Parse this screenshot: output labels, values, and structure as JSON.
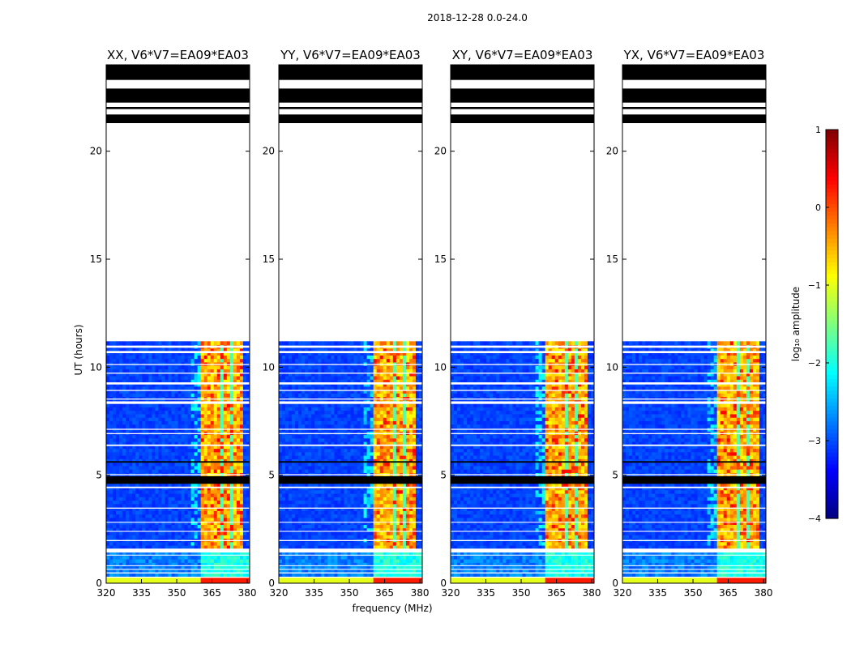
{
  "figure_title": "2018-12-28 0.0-24.0",
  "chart_data": [
    {
      "type": "heatmap",
      "title": "XX, V6*V7=EA09*EA03",
      "xlabel": "",
      "ylabel": "UT (hours)",
      "xlim": [
        320,
        381
      ],
      "ylim": [
        0,
        24
      ],
      "xticks": [
        320,
        335,
        350,
        365,
        380
      ],
      "yticks": [
        0,
        5,
        10,
        15,
        20
      ],
      "data_extent_hours": [
        0,
        11.2
      ],
      "bright_band_mhz": [
        360.5,
        378.5
      ]
    },
    {
      "type": "heatmap",
      "title": "YY, V6*V7=EA09*EA03",
      "xlabel": "frequency (MHz)",
      "ylabel": "",
      "xlim": [
        320,
        381
      ],
      "ylim": [
        0,
        24
      ],
      "xticks": [
        320,
        335,
        350,
        365,
        380
      ],
      "yticks": [
        0,
        5,
        10,
        15,
        20
      ],
      "data_extent_hours": [
        0,
        11.2
      ],
      "bright_band_mhz": [
        360.5,
        378.5
      ]
    },
    {
      "type": "heatmap",
      "title": "XY, V6*V7=EA09*EA03",
      "xlabel": "",
      "ylabel": "",
      "xlim": [
        320,
        381
      ],
      "ylim": [
        0,
        24
      ],
      "xticks": [
        320,
        335,
        350,
        365,
        380
      ],
      "yticks": [
        0,
        5,
        10,
        15,
        20
      ],
      "data_extent_hours": [
        0,
        11.2
      ],
      "bright_band_mhz": [
        360.5,
        378.5
      ]
    },
    {
      "type": "heatmap",
      "title": "YX, V6*V7=EA09*EA03",
      "xlabel": "",
      "ylabel": "",
      "xlim": [
        320,
        381
      ],
      "ylim": [
        0,
        24
      ],
      "xticks": [
        320,
        335,
        350,
        365,
        380
      ],
      "yticks": [
        0,
        5,
        10,
        15,
        20
      ],
      "data_extent_hours": [
        0,
        11.2
      ],
      "bright_band_mhz": [
        360.5,
        378.5
      ]
    }
  ],
  "colorbar": {
    "label": "log₁₀ amplitude",
    "range": [
      -4,
      1
    ],
    "ticks": [
      1,
      0,
      -1,
      -2,
      -3,
      -4
    ],
    "tick_labels": [
      "1",
      "0",
      "−1",
      "−2",
      "−3",
      "−4"
    ],
    "colormap": "jet"
  },
  "flagged_black_hours": [
    [
      4.6,
      4.95
    ],
    [
      5.58,
      5.65
    ],
    [
      21.3,
      21.7
    ],
    [
      21.95,
      22.05
    ],
    [
      22.25,
      22.9
    ],
    [
      23.3,
      24.0
    ]
  ],
  "colors": {
    "background": "#ffffff",
    "axes": "#000000",
    "noise": "#1030e0",
    "band": "#d8f030"
  }
}
